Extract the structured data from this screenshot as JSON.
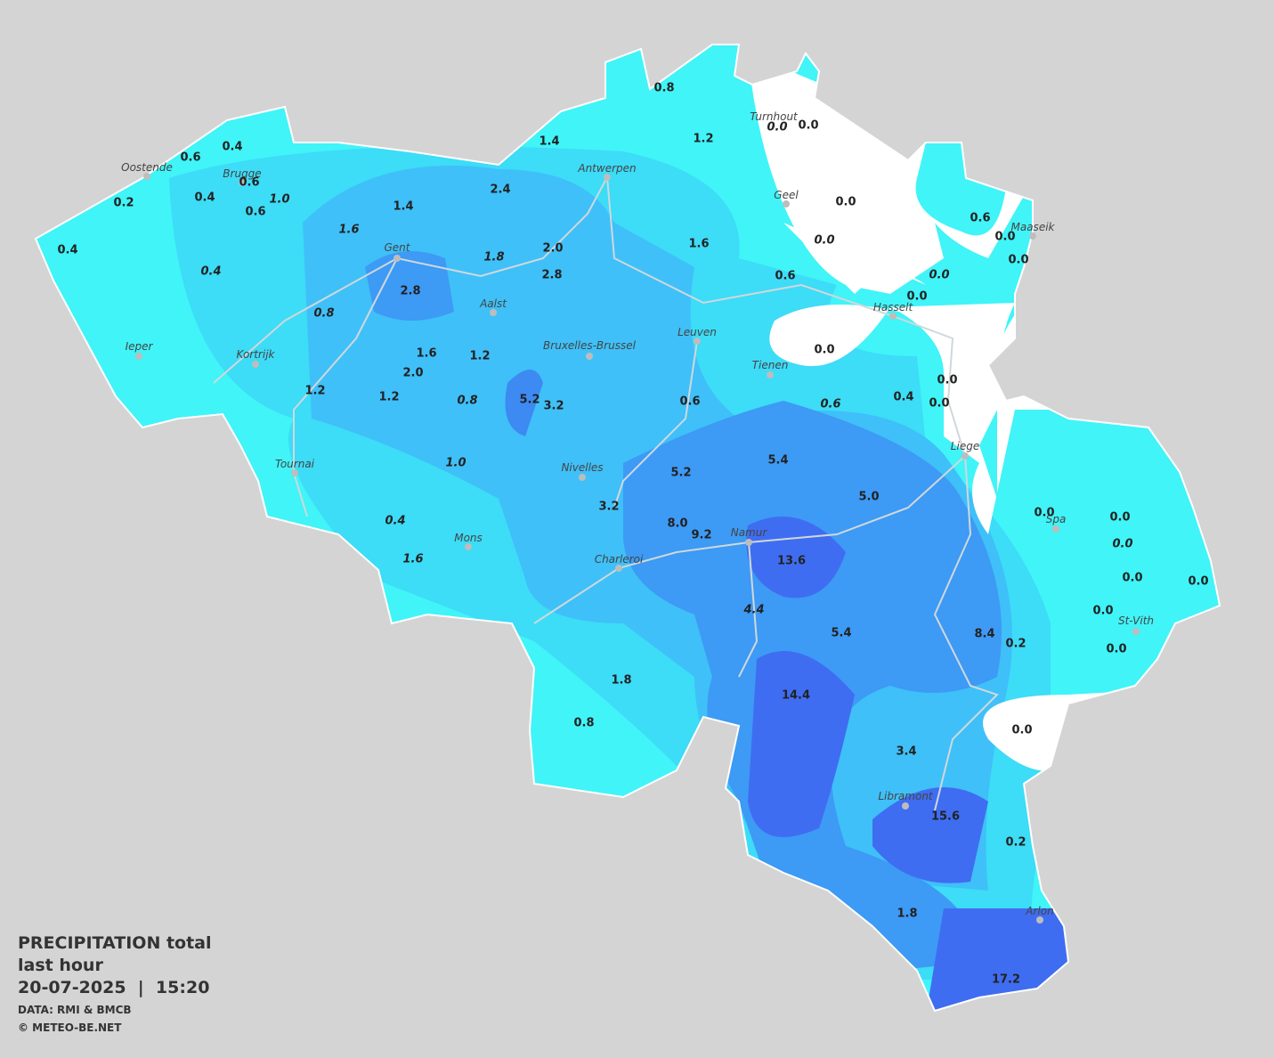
{
  "header": {
    "title": "PRECIPITATION total",
    "subtitle": "last hour",
    "datetime": "20-07-2025  |  15:20",
    "source": "DATA: RMI & BMCB",
    "credit": "© METEO-BE.NET"
  },
  "cities": [
    {
      "name": "Turnhout"
    },
    {
      "name": "Oostende"
    },
    {
      "name": "Brugge"
    },
    {
      "name": "Antwerpen"
    },
    {
      "name": "Geel"
    },
    {
      "name": "Maaseik"
    },
    {
      "name": "Gent"
    },
    {
      "name": "Aalst"
    },
    {
      "name": "Hasselt"
    },
    {
      "name": "Leuven"
    },
    {
      "name": "Bruxelles-Brussel"
    },
    {
      "name": "Ieper"
    },
    {
      "name": "Kortrijk"
    },
    {
      "name": "Tienen"
    },
    {
      "name": "Liege"
    },
    {
      "name": "Tournai"
    },
    {
      "name": "Nivelles"
    },
    {
      "name": "Spa"
    },
    {
      "name": "Namur"
    },
    {
      "name": "Mons"
    },
    {
      "name": "Charleroi"
    },
    {
      "name": "St-Vith"
    },
    {
      "name": "Libramont"
    },
    {
      "name": "Arlon"
    }
  ],
  "stations": [
    {
      "value": "0.8",
      "italic": false
    },
    {
      "value": "1.2",
      "italic": false
    },
    {
      "value": "0.0",
      "italic": true
    },
    {
      "value": "0.0",
      "italic": false
    },
    {
      "value": "0.4",
      "italic": false
    },
    {
      "value": "0.6",
      "italic": false
    },
    {
      "value": "1.4",
      "italic": false
    },
    {
      "value": "0.6",
      "italic": false
    },
    {
      "value": "0.4",
      "italic": false
    },
    {
      "value": "1.0",
      "italic": true
    },
    {
      "value": "0.6",
      "italic": false
    },
    {
      "value": "0.2",
      "italic": false
    },
    {
      "value": "2.4",
      "italic": false
    },
    {
      "value": "1.4",
      "italic": false
    },
    {
      "value": "0.0",
      "italic": false
    },
    {
      "value": "0.6",
      "italic": false
    },
    {
      "value": "0.0",
      "italic": false
    },
    {
      "value": "0.0",
      "italic": false
    },
    {
      "value": "1.6",
      "italic": true
    },
    {
      "value": "0.0",
      "italic": true
    },
    {
      "value": "1.6",
      "italic": false
    },
    {
      "value": "2.0",
      "italic": false
    },
    {
      "value": "0.4",
      "italic": false
    },
    {
      "value": "1.8",
      "italic": true
    },
    {
      "value": "0.0",
      "italic": true
    },
    {
      "value": "2.8",
      "italic": false
    },
    {
      "value": "0.6",
      "italic": false
    },
    {
      "value": "0.4",
      "italic": true
    },
    {
      "value": "2.8",
      "italic": false
    },
    {
      "value": "0.0",
      "italic": false
    },
    {
      "value": "0.8",
      "italic": true
    },
    {
      "value": "0.0",
      "italic": false
    },
    {
      "value": "1.6",
      "italic": false
    },
    {
      "value": "1.2",
      "italic": false
    },
    {
      "value": "2.0",
      "italic": false
    },
    {
      "value": "0.0",
      "italic": false
    },
    {
      "value": "0.4",
      "italic": false
    },
    {
      "value": "1.2",
      "italic": false
    },
    {
      "value": "1.2",
      "italic": false
    },
    {
      "value": "0.8",
      "italic": true
    },
    {
      "value": "5.2",
      "italic": false
    },
    {
      "value": "3.2",
      "italic": false
    },
    {
      "value": "0.6",
      "italic": false
    },
    {
      "value": "0.6",
      "italic": true
    },
    {
      "value": "0.0",
      "italic": false
    },
    {
      "value": "5.4",
      "italic": false
    },
    {
      "value": "1.0",
      "italic": true
    },
    {
      "value": "5.2",
      "italic": false
    },
    {
      "value": "5.0",
      "italic": false
    },
    {
      "value": "3.2",
      "italic": false
    },
    {
      "value": "0.0",
      "italic": false
    },
    {
      "value": "0.0",
      "italic": false
    },
    {
      "value": "0.4",
      "italic": true
    },
    {
      "value": "8.0",
      "italic": false
    },
    {
      "value": "9.2",
      "italic": false
    },
    {
      "value": "0.0",
      "italic": true
    },
    {
      "value": "1.6",
      "italic": true
    },
    {
      "value": "13.6",
      "italic": false
    },
    {
      "value": "0.0",
      "italic": false
    },
    {
      "value": "0.0",
      "italic": false
    },
    {
      "value": "4.4",
      "italic": true
    },
    {
      "value": "0.0",
      "italic": false
    },
    {
      "value": "5.4",
      "italic": false
    },
    {
      "value": "8.4",
      "italic": false
    },
    {
      "value": "0.2",
      "italic": false
    },
    {
      "value": "0.0",
      "italic": false
    },
    {
      "value": "1.8",
      "italic": false
    },
    {
      "value": "14.4",
      "italic": false
    },
    {
      "value": "0.8",
      "italic": false
    },
    {
      "value": "0.0",
      "italic": false
    },
    {
      "value": "3.4",
      "italic": false
    },
    {
      "value": "15.6",
      "italic": false
    },
    {
      "value": "0.2",
      "italic": false
    },
    {
      "value": "1.8",
      "italic": false
    },
    {
      "value": "17.2",
      "italic": false
    }
  ]
}
